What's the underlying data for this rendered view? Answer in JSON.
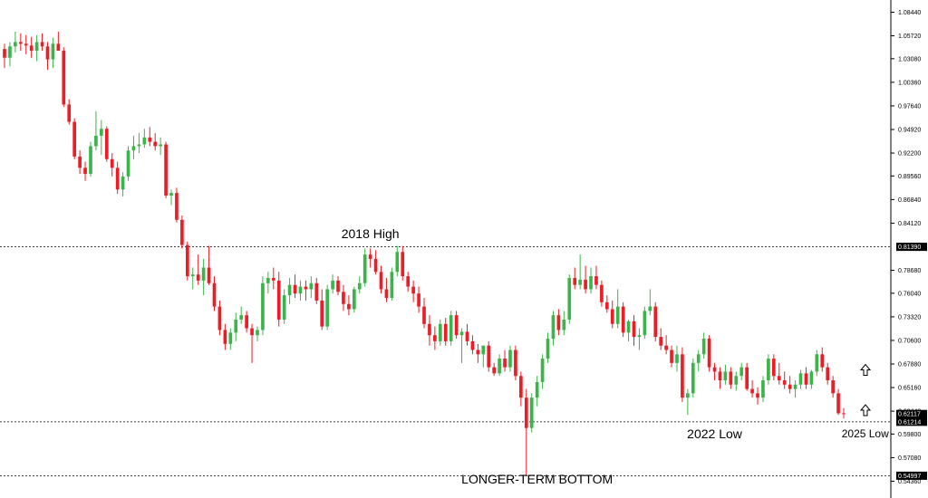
{
  "chart_data": {
    "type": "candlestick",
    "title": "",
    "xlabel": "",
    "ylabel": "",
    "ylim": [
      0.5436,
      1.088
    ],
    "y_ticks": [
      "1.08440",
      "1.05720",
      "1.03080",
      "1.00360",
      "0.97640",
      "0.94920",
      "0.92200",
      "0.89560",
      "0.86840",
      "0.84120",
      "0.78680",
      "0.76040",
      "0.73320",
      "0.70600",
      "0.67880",
      "0.65160",
      "0.62440",
      "0.59800",
      "0.57080",
      "0.54360"
    ],
    "grid": false,
    "colors": {
      "up": "#3cb44b",
      "down": "#ee1c25",
      "axis": "#000000",
      "tag": "#000000"
    },
    "candles": [
      [
        1.042,
        1.048,
        1.02,
        1.032
      ],
      [
        1.032,
        1.05,
        1.022,
        1.045
      ],
      [
        1.045,
        1.062,
        1.038,
        1.05
      ],
      [
        1.05,
        1.06,
        1.04,
        1.048
      ],
      [
        1.048,
        1.058,
        1.036,
        1.046
      ],
      [
        1.046,
        1.056,
        1.032,
        1.04
      ],
      [
        1.04,
        1.058,
        1.028,
        1.05
      ],
      [
        1.05,
        1.06,
        1.04,
        1.045
      ],
      [
        1.045,
        1.05,
        1.018,
        1.03
      ],
      [
        1.03,
        1.055,
        1.02,
        1.048
      ],
      [
        1.048,
        1.062,
        1.04,
        1.04
      ],
      [
        1.04,
        1.044,
        0.975,
        0.978
      ],
      [
        0.978,
        0.984,
        0.955,
        0.958
      ],
      [
        0.958,
        0.962,
        0.915,
        0.918
      ],
      [
        0.918,
        0.925,
        0.898,
        0.905
      ],
      [
        0.905,
        0.912,
        0.89,
        0.898
      ],
      [
        0.898,
        0.935,
        0.895,
        0.93
      ],
      [
        0.93,
        0.97,
        0.925,
        0.942
      ],
      [
        0.942,
        0.96,
        0.92,
        0.95
      ],
      [
        0.95,
        0.953,
        0.912,
        0.915
      ],
      [
        0.915,
        0.922,
        0.895,
        0.905
      ],
      [
        0.905,
        0.912,
        0.875,
        0.88
      ],
      [
        0.88,
        0.9,
        0.872,
        0.895
      ],
      [
        0.895,
        0.93,
        0.89,
        0.925
      ],
      [
        0.925,
        0.942,
        0.915,
        0.93
      ],
      [
        0.93,
        0.945,
        0.922,
        0.932
      ],
      [
        0.932,
        0.95,
        0.928,
        0.94
      ],
      [
        0.94,
        0.952,
        0.93,
        0.935
      ],
      [
        0.935,
        0.945,
        0.925,
        0.93
      ],
      [
        0.93,
        0.94,
        0.92,
        0.932
      ],
      [
        0.932,
        0.935,
        0.87,
        0.873
      ],
      [
        0.873,
        0.88,
        0.862,
        0.876
      ],
      [
        0.876,
        0.882,
        0.842,
        0.845
      ],
      [
        0.845,
        0.85,
        0.812,
        0.816
      ],
      [
        0.816,
        0.82,
        0.775,
        0.78
      ],
      [
        0.78,
        0.79,
        0.765,
        0.782
      ],
      [
        0.782,
        0.805,
        0.77,
        0.775
      ],
      [
        0.775,
        0.8,
        0.758,
        0.79
      ],
      [
        0.79,
        0.815,
        0.77,
        0.772
      ],
      [
        0.772,
        0.78,
        0.74,
        0.745
      ],
      [
        0.745,
        0.752,
        0.712,
        0.718
      ],
      [
        0.718,
        0.725,
        0.695,
        0.702
      ],
      [
        0.702,
        0.72,
        0.695,
        0.715
      ],
      [
        0.715,
        0.738,
        0.705,
        0.73
      ],
      [
        0.73,
        0.745,
        0.725,
        0.735
      ],
      [
        0.735,
        0.74,
        0.715,
        0.72
      ],
      [
        0.72,
        0.725,
        0.68,
        0.712
      ],
      [
        0.712,
        0.722,
        0.705,
        0.718
      ],
      [
        0.718,
        0.78,
        0.712,
        0.772
      ],
      [
        0.772,
        0.785,
        0.76,
        0.778
      ],
      [
        0.778,
        0.79,
        0.765,
        0.775
      ],
      [
        0.775,
        0.785,
        0.722,
        0.73
      ],
      [
        0.73,
        0.765,
        0.725,
        0.758
      ],
      [
        0.758,
        0.778,
        0.748,
        0.77
      ],
      [
        0.77,
        0.782,
        0.755,
        0.76
      ],
      [
        0.76,
        0.775,
        0.752,
        0.768
      ],
      [
        0.768,
        0.775,
        0.752,
        0.765
      ],
      [
        0.765,
        0.78,
        0.755,
        0.772
      ],
      [
        0.772,
        0.778,
        0.748,
        0.752
      ],
      [
        0.752,
        0.765,
        0.718,
        0.722
      ],
      [
        0.722,
        0.77,
        0.718,
        0.765
      ],
      [
        0.765,
        0.782,
        0.76,
        0.775
      ],
      [
        0.775,
        0.78,
        0.758,
        0.762
      ],
      [
        0.762,
        0.77,
        0.74,
        0.748
      ],
      [
        0.748,
        0.758,
        0.735,
        0.742
      ],
      [
        0.742,
        0.768,
        0.738,
        0.765
      ],
      [
        0.765,
        0.78,
        0.76,
        0.772
      ],
      [
        0.772,
        0.812,
        0.768,
        0.805
      ],
      [
        0.805,
        0.812,
        0.79,
        0.8
      ],
      [
        0.8,
        0.81,
        0.782,
        0.785
      ],
      [
        0.785,
        0.792,
        0.76,
        0.765
      ],
      [
        0.765,
        0.778,
        0.75,
        0.755
      ],
      [
        0.755,
        0.79,
        0.752,
        0.785
      ],
      [
        0.785,
        0.815,
        0.78,
        0.808
      ],
      [
        0.808,
        0.815,
        0.775,
        0.78
      ],
      [
        0.78,
        0.785,
        0.762,
        0.768
      ],
      [
        0.768,
        0.775,
        0.75,
        0.76
      ],
      [
        0.76,
        0.768,
        0.738,
        0.745
      ],
      [
        0.745,
        0.755,
        0.72,
        0.725
      ],
      [
        0.725,
        0.735,
        0.7,
        0.712
      ],
      [
        0.712,
        0.722,
        0.695,
        0.705
      ],
      [
        0.705,
        0.73,
        0.7,
        0.725
      ],
      [
        0.725,
        0.732,
        0.7,
        0.705
      ],
      [
        0.705,
        0.74,
        0.7,
        0.735
      ],
      [
        0.735,
        0.74,
        0.708,
        0.712
      ],
      [
        0.712,
        0.72,
        0.68,
        0.716
      ],
      [
        0.716,
        0.725,
        0.7,
        0.705
      ],
      [
        0.705,
        0.712,
        0.69,
        0.695
      ],
      [
        0.695,
        0.702,
        0.68,
        0.69
      ],
      [
        0.69,
        0.7,
        0.675,
        0.7
      ],
      [
        0.7,
        0.705,
        0.67,
        0.675
      ],
      [
        0.675,
        0.68,
        0.665,
        0.668
      ],
      [
        0.668,
        0.69,
        0.665,
        0.685
      ],
      [
        0.685,
        0.695,
        0.67,
        0.675
      ],
      [
        0.675,
        0.7,
        0.67,
        0.695
      ],
      [
        0.695,
        0.7,
        0.66,
        0.665
      ],
      [
        0.665,
        0.67,
        0.63,
        0.64
      ],
      [
        0.64,
        0.65,
        0.55,
        0.605
      ],
      [
        0.605,
        0.645,
        0.6,
        0.64
      ],
      [
        0.64,
        0.665,
        0.63,
        0.658
      ],
      [
        0.658,
        0.69,
        0.65,
        0.685
      ],
      [
        0.685,
        0.715,
        0.68,
        0.708
      ],
      [
        0.708,
        0.74,
        0.7,
        0.735
      ],
      [
        0.735,
        0.742,
        0.712,
        0.718
      ],
      [
        0.718,
        0.74,
        0.712,
        0.73
      ],
      [
        0.73,
        0.782,
        0.725,
        0.778
      ],
      [
        0.778,
        0.79,
        0.765,
        0.77
      ],
      [
        0.77,
        0.805,
        0.765,
        0.776
      ],
      [
        0.776,
        0.792,
        0.76,
        0.765
      ],
      [
        0.765,
        0.79,
        0.76,
        0.78
      ],
      [
        0.78,
        0.792,
        0.765,
        0.77
      ],
      [
        0.77,
        0.775,
        0.745,
        0.75
      ],
      [
        0.75,
        0.758,
        0.738,
        0.742
      ],
      [
        0.742,
        0.752,
        0.72,
        0.725
      ],
      [
        0.725,
        0.765,
        0.72,
        0.745
      ],
      [
        0.745,
        0.75,
        0.71,
        0.715
      ],
      [
        0.715,
        0.73,
        0.705,
        0.728
      ],
      [
        0.728,
        0.735,
        0.7,
        0.71
      ],
      [
        0.71,
        0.72,
        0.695,
        0.712
      ],
      [
        0.712,
        0.745,
        0.708,
        0.74
      ],
      [
        0.74,
        0.765,
        0.735,
        0.745
      ],
      [
        0.745,
        0.75,
        0.705,
        0.71
      ],
      [
        0.71,
        0.72,
        0.695,
        0.7
      ],
      [
        0.7,
        0.712,
        0.69,
        0.695
      ],
      [
        0.695,
        0.7,
        0.675,
        0.68
      ],
      [
        0.68,
        0.7,
        0.67,
        0.69
      ],
      [
        0.69,
        0.698,
        0.635,
        0.64
      ],
      [
        0.64,
        0.65,
        0.62,
        0.645
      ],
      [
        0.645,
        0.685,
        0.64,
        0.68
      ],
      [
        0.68,
        0.695,
        0.67,
        0.69
      ],
      [
        0.69,
        0.715,
        0.685,
        0.708
      ],
      [
        0.708,
        0.712,
        0.67,
        0.675
      ],
      [
        0.675,
        0.68,
        0.66,
        0.67
      ],
      [
        0.67,
        0.675,
        0.65,
        0.66
      ],
      [
        0.66,
        0.678,
        0.655,
        0.67
      ],
      [
        0.67,
        0.675,
        0.65,
        0.655
      ],
      [
        0.655,
        0.67,
        0.648,
        0.665
      ],
      [
        0.665,
        0.68,
        0.66,
        0.675
      ],
      [
        0.675,
        0.68,
        0.648,
        0.65
      ],
      [
        0.65,
        0.66,
        0.64,
        0.645
      ],
      [
        0.645,
        0.652,
        0.632,
        0.64
      ],
      [
        0.64,
        0.665,
        0.635,
        0.66
      ],
      [
        0.66,
        0.69,
        0.655,
        0.685
      ],
      [
        0.685,
        0.69,
        0.66,
        0.665
      ],
      [
        0.665,
        0.68,
        0.655,
        0.66
      ],
      [
        0.66,
        0.67,
        0.65,
        0.655
      ],
      [
        0.655,
        0.665,
        0.645,
        0.65
      ],
      [
        0.65,
        0.66,
        0.64,
        0.655
      ],
      [
        0.655,
        0.672,
        0.65,
        0.668
      ],
      [
        0.668,
        0.675,
        0.65,
        0.655
      ],
      [
        0.655,
        0.672,
        0.65,
        0.67
      ],
      [
        0.67,
        0.695,
        0.665,
        0.69
      ],
      [
        0.69,
        0.698,
        0.67,
        0.675
      ],
      [
        0.675,
        0.68,
        0.655,
        0.66
      ],
      [
        0.66,
        0.665,
        0.64,
        0.645
      ],
      [
        0.645,
        0.65,
        0.62,
        0.622
      ],
      [
        0.622,
        0.628,
        0.616,
        0.6212
      ]
    ],
    "levels": [
      {
        "value": 0.8139,
        "label": "0.81390",
        "style": "dotted"
      },
      {
        "value": 0.61214,
        "label": "0.61214",
        "style": "dotted"
      },
      {
        "value": 0.54997,
        "label": "0.54997",
        "style": "dotted"
      }
    ],
    "current_price": {
      "value": 0.62117,
      "label": "0.62117"
    },
    "annotations": [
      {
        "text": "2018 High",
        "price": 0.8239,
        "candle": 68
      },
      {
        "text": "2022 Low",
        "price": 0.593,
        "candle": 132
      },
      {
        "text": "2025 Low",
        "price": 0.594,
        "candle": 160
      },
      {
        "text": "LONGER-TERM BOTTOM",
        "price": 0.541,
        "candle": 99
      }
    ],
    "arrows": [
      {
        "icon": "up-arrow-icon",
        "price": 0.672
      },
      {
        "icon": "up-arrow-icon",
        "price": 0.6255
      }
    ]
  }
}
